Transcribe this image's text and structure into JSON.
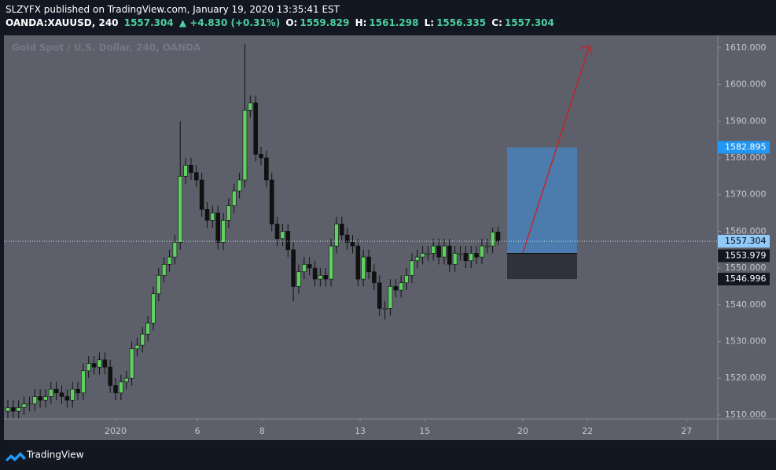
{
  "header": {
    "author_line": "SLZYFX published on TradingView.com, January 19, 2020 13:35:41 EST",
    "symbol": "OANDA:XAUUSD, 240",
    "last": "1557.304",
    "change": "▲ +4.830 (+0.31%)",
    "open_label": "O:",
    "open": "1559.829",
    "high_label": "H:",
    "high": "1561.298",
    "low_label": "L:",
    "low": "1556.335",
    "close_label": "C:",
    "close": "1557.304"
  },
  "footer": {
    "brand": "TradingView"
  },
  "chart_data": {
    "type": "candlestick",
    "watermark": "Gold Spot / U.S. Dollar, 240, OANDA",
    "up_color": "#5fd35f",
    "down_color": "#111111",
    "open": [
      1511,
      1512,
      1511,
      1512,
      1513,
      1513,
      1515,
      1514,
      1515,
      1517,
      1516,
      1515,
      1514,
      1517,
      1516,
      1522,
      1524,
      1523,
      1525,
      1523,
      1518,
      1516,
      1519,
      1520,
      1528,
      1529,
      1532,
      1535,
      1543,
      1548,
      1551,
      1553,
      1557,
      1575,
      1578,
      1576,
      1574,
      1566,
      1563,
      1565,
      1557,
      1563,
      1567,
      1571,
      1574,
      1593,
      1595,
      1581,
      1580,
      1574,
      1562,
      1558,
      1560,
      1555,
      1545,
      1549,
      1551,
      1550,
      1547,
      1548,
      1547,
      1556,
      1562,
      1559,
      1557,
      1556,
      1547,
      1553,
      1549,
      1546,
      1539,
      1539,
      1545,
      1544,
      1546,
      1548,
      1552,
      1553,
      1554,
      1554,
      1556,
      1553,
      1556,
      1551,
      1554,
      1554,
      1552,
      1554,
      1553,
      1556,
      1556,
      1559.829
    ],
    "high": [
      1514,
      1514,
      1514,
      1515,
      1515,
      1517,
      1517,
      1517,
      1519,
      1519,
      1518,
      1517,
      1519,
      1519,
      1524,
      1526,
      1526,
      1527,
      1527,
      1525,
      1520,
      1521,
      1522,
      1530,
      1531,
      1534,
      1537,
      1545,
      1550,
      1553,
      1555,
      1559,
      1590,
      1580,
      1580,
      1578,
      1576,
      1568,
      1567,
      1567,
      1565,
      1569,
      1573,
      1576,
      1611,
      1597,
      1597,
      1583,
      1582,
      1576,
      1564,
      1562,
      1562,
      1557,
      1551,
      1553,
      1553,
      1552,
      1550,
      1550,
      1558,
      1564,
      1564,
      1561,
      1559,
      1558,
      1555,
      1555,
      1551,
      1548,
      1541,
      1547,
      1547,
      1548,
      1550,
      1554,
      1555,
      1556,
      1556,
      1558,
      1558,
      1558,
      1558,
      1556,
      1556,
      1556,
      1556,
      1556,
      1558,
      1558,
      1561,
      1561.298
    ],
    "low": [
      1509,
      1509,
      1509,
      1510,
      1511,
      1511,
      1512,
      1512,
      1513,
      1514,
      1513,
      1512,
      1512,
      1514,
      1514,
      1520,
      1521,
      1521,
      1521,
      1516,
      1514,
      1514,
      1517,
      1518,
      1526,
      1527,
      1530,
      1533,
      1541,
      1546,
      1549,
      1551,
      1555,
      1573,
      1574,
      1572,
      1564,
      1561,
      1561,
      1555,
      1555,
      1561,
      1565,
      1569,
      1572,
      1591,
      1579,
      1578,
      1572,
      1560,
      1556,
      1556,
      1553,
      1541,
      1543,
      1547,
      1548,
      1545,
      1545,
      1545,
      1545,
      1554,
      1557,
      1555,
      1554,
      1545,
      1545,
      1547,
      1544,
      1537,
      1536,
      1537,
      1542,
      1542,
      1544,
      1546,
      1550,
      1551,
      1552,
      1552,
      1551,
      1551,
      1549,
      1549,
      1552,
      1550,
      1550,
      1551,
      1551,
      1554,
      1554,
      1556.335
    ],
    "close": [
      1512,
      1511,
      1512,
      1513,
      1513,
      1515,
      1514,
      1515,
      1517,
      1516,
      1515,
      1514,
      1517,
      1516,
      1522,
      1524,
      1523,
      1525,
      1523,
      1518,
      1516,
      1519,
      1520,
      1528,
      1529,
      1532,
      1535,
      1543,
      1548,
      1551,
      1553,
      1557,
      1575,
      1578,
      1576,
      1574,
      1566,
      1563,
      1565,
      1557,
      1563,
      1567,
      1571,
      1574,
      1593,
      1595,
      1581,
      1580,
      1574,
      1562,
      1558,
      1560,
      1555,
      1545,
      1549,
      1551,
      1550,
      1547,
      1548,
      1547,
      1556,
      1562,
      1559,
      1557,
      1556,
      1547,
      1553,
      1549,
      1546,
      1539,
      1539,
      1545,
      1544,
      1546,
      1548,
      1552,
      1553,
      1554,
      1554,
      1556,
      1553,
      1556,
      1551,
      1554,
      1554,
      1552,
      1554,
      1553,
      1556,
      1556,
      1559.829,
      1557.304
    ],
    "xlim": [
      -0.73,
      131.8
    ],
    "xticks": [
      {
        "value": 20,
        "label": "2020"
      },
      {
        "value": 35.2,
        "label": "6"
      },
      {
        "value": 47.2,
        "label": "8"
      },
      {
        "value": 65.4,
        "label": "13"
      },
      {
        "value": 77.4,
        "label": "15"
      },
      {
        "value": 95.6,
        "label": "20"
      },
      {
        "value": 107.6,
        "label": "22"
      },
      {
        "value": 126,
        "label": "27"
      }
    ],
    "ylim": [
      1508.9,
      1613.4
    ],
    "yticks": [
      {
        "value": 1510,
        "label": "1510.000"
      },
      {
        "value": 1520,
        "label": "1520.000"
      },
      {
        "value": 1530,
        "label": "1530.000"
      },
      {
        "value": 1540,
        "label": "1540.000"
      },
      {
        "value": 1550,
        "label": "1550.000"
      },
      {
        "value": 1560,
        "label": "1560.000"
      },
      {
        "value": 1570,
        "label": "1570.000"
      },
      {
        "value": 1580,
        "label": "1580.000"
      },
      {
        "value": 1590,
        "label": "1590.000"
      },
      {
        "value": 1600,
        "label": "1600.000"
      },
      {
        "value": 1610,
        "label": "1610.000"
      }
    ],
    "last_price": {
      "value": 1557.304,
      "label": "1557.304"
    },
    "position": {
      "target": {
        "value": 1582.895,
        "label": "1582.895"
      },
      "entry": {
        "value": 1553.979,
        "label": "1553.979"
      },
      "stop": {
        "value": 1546.996,
        "label": "1546.996"
      }
    }
  }
}
